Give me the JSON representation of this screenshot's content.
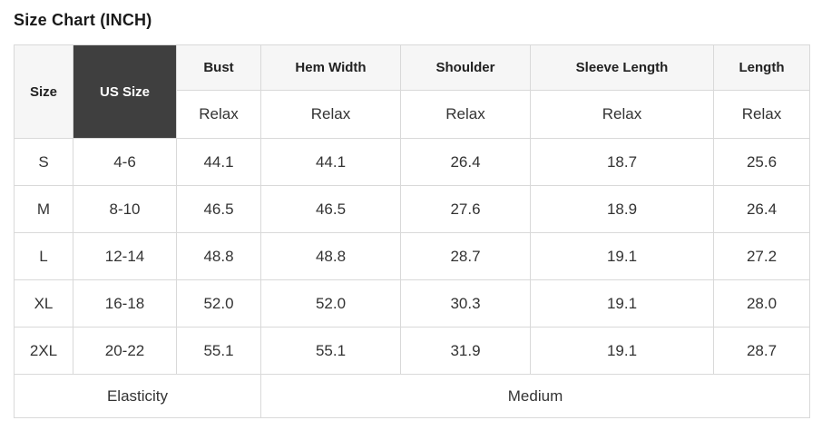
{
  "title": "Size Chart (INCH)",
  "colors": {
    "header_bg": "#f6f6f6",
    "dark_cell_bg": "#3f3f3f",
    "dark_cell_text": "#ffffff",
    "border": "#d9d9d9",
    "text": "#333333"
  },
  "table": {
    "corner_headers": {
      "size": "Size",
      "us_size": "US Size"
    },
    "measure_headers": [
      "Bust",
      "Hem Width",
      "Shoulder",
      "Sleeve Length",
      "Length"
    ],
    "fit_row": [
      "Relax",
      "Relax",
      "Relax",
      "Relax",
      "Relax"
    ],
    "rows": [
      {
        "size": "S",
        "us_size": "4-6",
        "values": [
          "44.1",
          "44.1",
          "26.4",
          "18.7",
          "25.6"
        ]
      },
      {
        "size": "M",
        "us_size": "8-10",
        "values": [
          "46.5",
          "46.5",
          "27.6",
          "18.9",
          "26.4"
        ]
      },
      {
        "size": "L",
        "us_size": "12-14",
        "values": [
          "48.8",
          "48.8",
          "28.7",
          "19.1",
          "27.2"
        ]
      },
      {
        "size": "XL",
        "us_size": "16-18",
        "values": [
          "52.0",
          "52.0",
          "30.3",
          "19.1",
          "28.0"
        ]
      },
      {
        "size": "2XL",
        "us_size": "20-22",
        "values": [
          "55.1",
          "55.1",
          "31.9",
          "19.1",
          "28.7"
        ]
      }
    ],
    "footer": {
      "label": "Elasticity",
      "value": "Medium"
    }
  }
}
